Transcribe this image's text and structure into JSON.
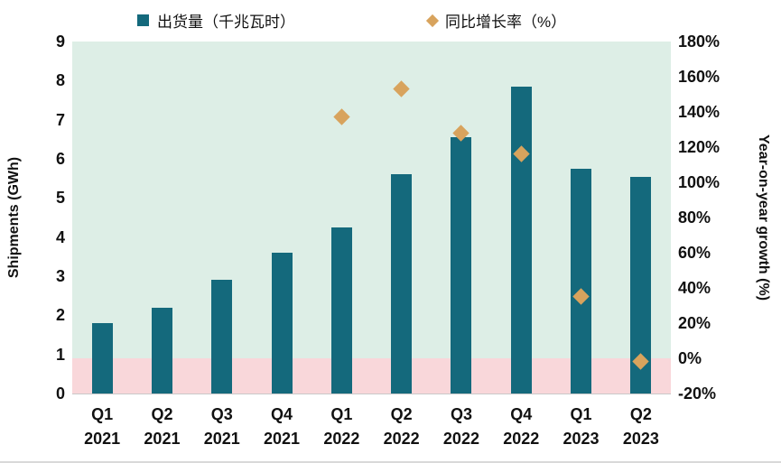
{
  "legend": {
    "shipments_label": "出货量（千兆瓦时）",
    "growth_label": "同比增长率（%）"
  },
  "chart_data": {
    "type": "bar",
    "title": "",
    "categories": [
      "Q1 2021",
      "Q2 2021",
      "Q3 2021",
      "Q4 2021",
      "Q1 2022",
      "Q2 2022",
      "Q3 2022",
      "Q4 2022",
      "Q1 2023",
      "Q2 2023"
    ],
    "series": [
      {
        "name": "出货量（千兆瓦时）",
        "type": "bar",
        "axis": "left",
        "color": "#14697c",
        "values": [
          1.8,
          2.2,
          2.9,
          3.6,
          4.25,
          5.6,
          6.55,
          7.85,
          5.75,
          5.55
        ]
      },
      {
        "name": "同比增长率（%）",
        "type": "scatter",
        "marker": "diamond",
        "axis": "right",
        "color": "#d8a35d",
        "values": [
          null,
          null,
          null,
          null,
          137,
          153,
          128,
          116,
          35,
          -2
        ]
      }
    ],
    "left_axis": {
      "label": "Shipments (GWh)",
      "min": 0,
      "max": 9,
      "ticks": [
        "0",
        "1",
        "2",
        "3",
        "4",
        "5",
        "6",
        "7",
        "8",
        "9"
      ]
    },
    "right_axis": {
      "label": "Year-on-year growth (%)",
      "min": -20,
      "max": 180,
      "ticks": [
        "-20%",
        "0%",
        "20%",
        "40%",
        "60%",
        "80%",
        "100%",
        "120%",
        "140%",
        "160%",
        "180%"
      ]
    },
    "plot_bg": {
      "above_zero": "#ddeee6",
      "below_zero": "#f9d7da"
    },
    "legend_position": "top",
    "grid": false
  }
}
